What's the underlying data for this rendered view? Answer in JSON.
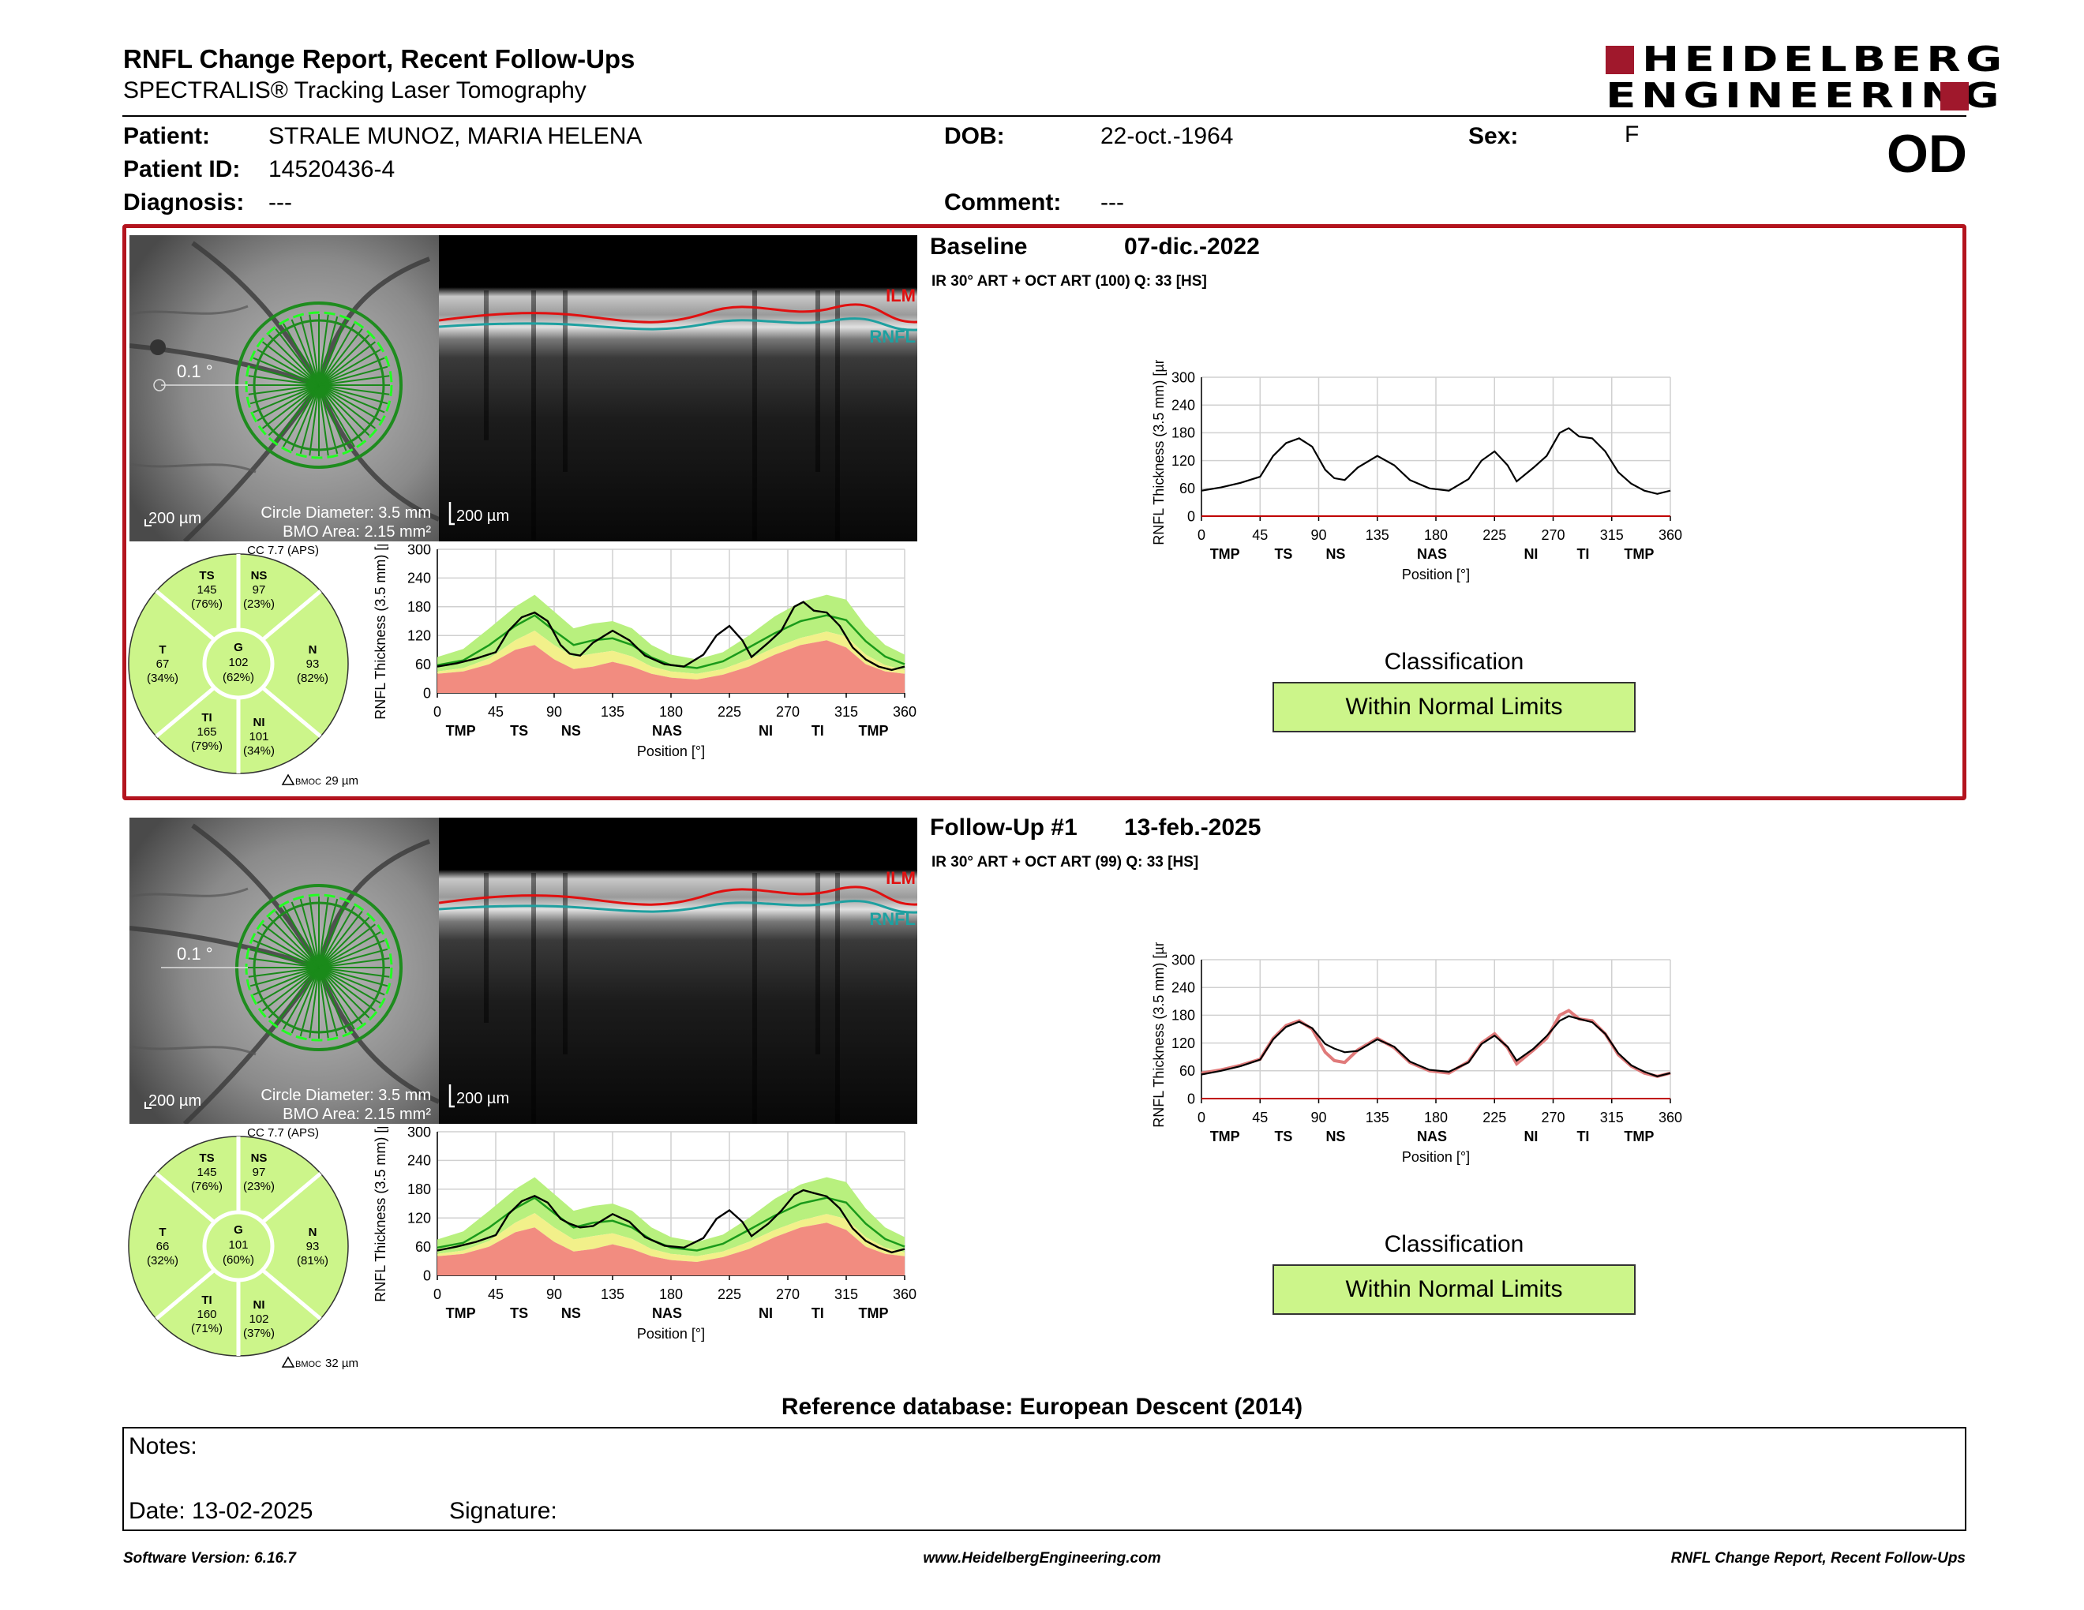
{
  "report": {
    "title": "RNFL Change Report, Recent Follow-Ups",
    "subtitle": "SPECTRALIS® Tracking Laser Tomography",
    "logo_line1": "HEIDELBERG",
    "logo_line2": "ENGINEERING",
    "eye": "OD"
  },
  "patient": {
    "patient_label": "Patient:",
    "name": "STRALE MUNOZ, MARIA HELENA",
    "id_label": "Patient ID:",
    "id": "14520436-4",
    "diagnosis_label": "Diagnosis:",
    "diagnosis": "---",
    "dob_label": "DOB:",
    "dob": "22-oct.-1964",
    "comment_label": "Comment:",
    "comment": "---",
    "sex_label": "Sex:",
    "sex": "F"
  },
  "exams": [
    {
      "label": "Baseline",
      "date": "07-dic.-2022",
      "scan_info": "IR 30° ART + OCT ART (100) Q: 33 [HS]",
      "classification_title": "Classification",
      "classification": "Within Normal Limits",
      "fundus": {
        "angle": "0.1 °",
        "scale": "200 µm",
        "circle_diameter": "Circle Diameter: 3.5 mm",
        "bmo_area": "BMO Area: 2.15 mm²"
      },
      "oct": {
        "ilm": "ILM",
        "rnfl": "RNFL",
        "scale": "200 µm"
      },
      "cc": "CC 7.7 (APS)",
      "bmoc_symbol": "BMOC",
      "bmoc_value": "29 µm",
      "sectors": {
        "TS": {
          "label": "TS",
          "value": "145",
          "pct": "(76%)"
        },
        "NS": {
          "label": "NS",
          "value": "97",
          "pct": "(23%)"
        },
        "T": {
          "label": "T",
          "value": "67",
          "pct": "(34%)"
        },
        "G": {
          "label": "G",
          "value": "102",
          "pct": "(62%)"
        },
        "N": {
          "label": "N",
          "value": "93",
          "pct": "(82%)"
        },
        "TI": {
          "label": "TI",
          "value": "165",
          "pct": "(79%)"
        },
        "NI": {
          "label": "NI",
          "value": "101",
          "pct": "(34%)"
        }
      }
    },
    {
      "label": "Follow-Up #1",
      "date": "13-feb.-2025",
      "scan_info": "IR 30° ART + OCT ART (99) Q: 33 [HS]",
      "classification_title": "Classification",
      "classification": "Within Normal Limits",
      "fundus": {
        "angle": "0.1 °",
        "scale": "200 µm",
        "circle_diameter": "Circle Diameter: 3.5 mm",
        "bmo_area": "BMO Area: 2.15 mm²"
      },
      "oct": {
        "ilm": "ILM",
        "rnfl": "RNFL",
        "scale": "200 µm"
      },
      "cc": "CC 7.7 (APS)",
      "bmoc_symbol": "BMOC",
      "bmoc_value": "32 µm",
      "sectors": {
        "TS": {
          "label": "TS",
          "value": "145",
          "pct": "(76%)"
        },
        "NS": {
          "label": "NS",
          "value": "97",
          "pct": "(23%)"
        },
        "T": {
          "label": "T",
          "value": "66",
          "pct": "(32%)"
        },
        "G": {
          "label": "G",
          "value": "101",
          "pct": "(60%)"
        },
        "N": {
          "label": "N",
          "value": "93",
          "pct": "(81%)"
        },
        "TI": {
          "label": "TI",
          "value": "160",
          "pct": "(71%)"
        },
        "NI": {
          "label": "NI",
          "value": "102",
          "pct": "(37%)"
        }
      }
    }
  ],
  "chart_data": [
    {
      "type": "line",
      "title": "",
      "xlabel": "Position [°]",
      "ylabel": "RNFL Thickness (3.5 mm) [µm]",
      "xlim": [
        0,
        360
      ],
      "ylim": [
        0,
        300
      ],
      "xticks": [
        "0",
        "45",
        "90",
        "135",
        "180",
        "225",
        "270",
        "315",
        "360"
      ],
      "yticks": [
        "0",
        "60",
        "120",
        "180",
        "240",
        "300"
      ],
      "sector_labels": [
        [
          "TMP",
          18
        ],
        [
          "TS",
          63
        ],
        [
          "NS",
          103
        ],
        [
          "NAS",
          177
        ],
        [
          "NI",
          253
        ],
        [
          "TI",
          293
        ],
        [
          "TMP",
          336
        ]
      ],
      "grid": true,
      "x": [
        0,
        15,
        30,
        45,
        55,
        65,
        75,
        85,
        95,
        102,
        110,
        120,
        135,
        148,
        160,
        175,
        190,
        205,
        215,
        225,
        235,
        242,
        255,
        265,
        275,
        282,
        290,
        300,
        310,
        320,
        330,
        340,
        350,
        360
      ],
      "series": [
        {
          "values": [
            55,
            62,
            72,
            85,
            130,
            158,
            168,
            150,
            100,
            82,
            78,
            105,
            130,
            110,
            78,
            60,
            55,
            80,
            120,
            140,
            110,
            75,
            105,
            130,
            180,
            190,
            172,
            168,
            140,
            95,
            70,
            55,
            48,
            55
          ]
        }
      ]
    },
    {
      "type": "line",
      "title": "",
      "xlabel": "Position [°]",
      "ylabel": "RNFL Thickness (3.5 mm) [µm]",
      "xlim": [
        0,
        360
      ],
      "ylim": [
        0,
        300
      ],
      "xticks": [
        "0",
        "45",
        "90",
        "135",
        "180",
        "225",
        "270",
        "315",
        "360"
      ],
      "yticks": [
        "0",
        "60",
        "120",
        "180",
        "240",
        "300"
      ],
      "sector_labels": [
        [
          "TMP",
          18
        ],
        [
          "TS",
          63
        ],
        [
          "NS",
          103
        ],
        [
          "NAS",
          177
        ],
        [
          "NI",
          253
        ],
        [
          "TI",
          293
        ],
        [
          "TMP",
          336
        ]
      ],
      "grid": true,
      "x": [
        0,
        15,
        30,
        45,
        55,
        65,
        75,
        85,
        95,
        102,
        110,
        120,
        135,
        148,
        160,
        175,
        190,
        205,
        215,
        225,
        235,
        242,
        255,
        265,
        275,
        282,
        290,
        300,
        310,
        320,
        330,
        340,
        350,
        360
      ],
      "series": [
        {
          "values": [
            55,
            62,
            72,
            85,
            130,
            158,
            168,
            150,
            100,
            82,
            78,
            105,
            130,
            110,
            78,
            60,
            55,
            80,
            120,
            140,
            110,
            75,
            105,
            130,
            180,
            190,
            172,
            168,
            140,
            95,
            70,
            55,
            48,
            55
          ]
        },
        {
          "values": [
            52,
            60,
            70,
            84,
            128,
            155,
            166,
            152,
            118,
            108,
            100,
            103,
            128,
            112,
            80,
            62,
            58,
            78,
            118,
            136,
            112,
            82,
            108,
            135,
            168,
            178,
            172,
            165,
            140,
            98,
            72,
            58,
            48,
            55
          ]
        }
      ]
    },
    {
      "type": "area",
      "title": "",
      "xlabel": "Position [°]",
      "ylabel": "RNFL Thickness (3.5 mm) [µm]",
      "xlim": [
        0,
        360
      ],
      "ylim": [
        0,
        300
      ],
      "xticks": [
        "0",
        "45",
        "90",
        "135",
        "180",
        "225",
        "270",
        "315",
        "360"
      ],
      "yticks": [
        "0",
        "60",
        "120",
        "180",
        "240",
        "300"
      ],
      "sector_labels": [
        [
          "TMP",
          18
        ],
        [
          "TS",
          63
        ],
        [
          "NS",
          103
        ],
        [
          "NAS",
          177
        ],
        [
          "NI",
          253
        ],
        [
          "TI",
          293
        ],
        [
          "TMP",
          336
        ]
      ],
      "grid": true,
      "x": [
        0,
        15,
        30,
        45,
        55,
        65,
        75,
        85,
        95,
        102,
        110,
        120,
        135,
        148,
        160,
        175,
        190,
        205,
        215,
        225,
        235,
        242,
        255,
        265,
        275,
        282,
        290,
        300,
        310,
        320,
        330,
        340,
        350,
        360
      ],
      "series": [
        {
          "values": [
            55,
            62,
            72,
            85,
            130,
            158,
            168,
            150,
            100,
            82,
            78,
            105,
            130,
            110,
            78,
            60,
            55,
            80,
            120,
            140,
            110,
            75,
            105,
            130,
            180,
            190,
            172,
            168,
            140,
            95,
            70,
            55,
            48,
            55
          ]
        }
      ]
    },
    {
      "type": "area",
      "title": "",
      "xlabel": "Position [°]",
      "ylabel": "RNFL Thickness (3.5 mm) [µm]",
      "xlim": [
        0,
        360
      ],
      "ylim": [
        0,
        300
      ],
      "xticks": [
        "0",
        "45",
        "90",
        "135",
        "180",
        "225",
        "270",
        "315",
        "360"
      ],
      "yticks": [
        "0",
        "60",
        "120",
        "180",
        "240",
        "300"
      ],
      "sector_labels": [
        [
          "TMP",
          18
        ],
        [
          "TS",
          63
        ],
        [
          "NS",
          103
        ],
        [
          "NAS",
          177
        ],
        [
          "NI",
          253
        ],
        [
          "TI",
          293
        ],
        [
          "TMP",
          336
        ]
      ],
      "grid": true,
      "x": [
        0,
        15,
        30,
        45,
        55,
        65,
        75,
        85,
        95,
        102,
        110,
        120,
        135,
        148,
        160,
        175,
        190,
        205,
        215,
        225,
        235,
        242,
        255,
        265,
        275,
        282,
        290,
        300,
        310,
        320,
        330,
        340,
        350,
        360
      ],
      "series": [
        {
          "values": [
            52,
            60,
            70,
            84,
            128,
            155,
            166,
            152,
            118,
            108,
            100,
            103,
            128,
            112,
            80,
            62,
            58,
            78,
            118,
            136,
            112,
            82,
            108,
            135,
            168,
            178,
            172,
            165,
            140,
            98,
            72,
            58,
            48,
            55
          ]
        }
      ]
    }
  ],
  "normative": {
    "x": [
      0,
      20,
      40,
      60,
      75,
      90,
      105,
      120,
      135,
      150,
      165,
      180,
      200,
      220,
      240,
      260,
      280,
      300,
      315,
      330,
      345,
      360
    ],
    "upper": [
      75,
      92,
      135,
      180,
      205,
      170,
      135,
      145,
      150,
      135,
      100,
      80,
      70,
      85,
      120,
      160,
      190,
      205,
      195,
      140,
      100,
      80
    ],
    "mid": [
      58,
      68,
      100,
      140,
      162,
      130,
      100,
      110,
      114,
      100,
      74,
      58,
      52,
      66,
      95,
      125,
      150,
      162,
      152,
      108,
      76,
      60
    ],
    "low_green": [
      45,
      52,
      72,
      110,
      130,
      100,
      75,
      82,
      88,
      76,
      55,
      45,
      40,
      50,
      70,
      95,
      115,
      128,
      118,
      80,
      58,
      48
    ],
    "red_top": [
      40,
      45,
      60,
      90,
      100,
      70,
      50,
      55,
      65,
      55,
      40,
      32,
      28,
      38,
      55,
      80,
      100,
      110,
      95,
      60,
      45,
      40
    ]
  },
  "footer": {
    "reference": "Reference database: European Descent (2014)",
    "notes_label": "Notes:",
    "date_label": "Date: 13-02-2025",
    "signature_label": "Signature:",
    "software": "Software Version: 6.16.7",
    "website": "www.HeidelbergEngineering.com",
    "report_name": "RNFL Change Report, Recent Follow-Ups"
  },
  "colors": {
    "frame_red": "#b3141e",
    "normal_green": "#ccf58a",
    "band_green": "#b8f07e",
    "band_yellow": "#f2f08a",
    "band_red": "#f28c80",
    "ilm": "#e01010",
    "rnfl": "#1ea0a0",
    "logo_red": "#a0182c"
  }
}
